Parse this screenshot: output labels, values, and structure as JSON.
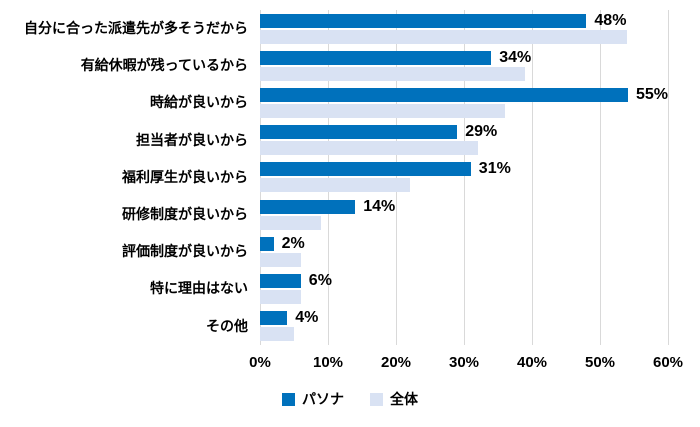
{
  "chart_data": {
    "type": "bar",
    "orientation": "horizontal",
    "categories": [
      "自分に合った派遣先が多そうだから",
      "有給休暇が残っているから",
      "時給が良いから",
      "担当者が良いから",
      "福利厚生が良いから",
      "研修制度が良いから",
      "評価制度が良いから",
      "特に理由はない",
      "その他"
    ],
    "series": [
      {
        "name": "パソナ",
        "color": "#0071BC",
        "values": [
          48,
          34,
          55,
          29,
          31,
          14,
          2,
          6,
          4
        ],
        "value_labels": [
          "48%",
          "34%",
          "55%",
          "29%",
          "31%",
          "14%",
          "2%",
          "6%",
          "4%"
        ],
        "show_value_labels": true
      },
      {
        "name": "全体",
        "color": "#D9E2F3",
        "values": [
          54,
          39,
          36,
          32,
          22,
          9,
          6,
          6,
          5
        ],
        "show_value_labels": false
      }
    ],
    "xlim": [
      0,
      60
    ],
    "x_tick_labels": [
      "0%",
      "10%",
      "20%",
      "30%",
      "40%",
      "50%",
      "60%"
    ],
    "grid": true,
    "legend_position": "bottom"
  },
  "colors": {
    "grid": "#D9D9D9",
    "text": "#000000",
    "background": "#FFFFFF"
  }
}
